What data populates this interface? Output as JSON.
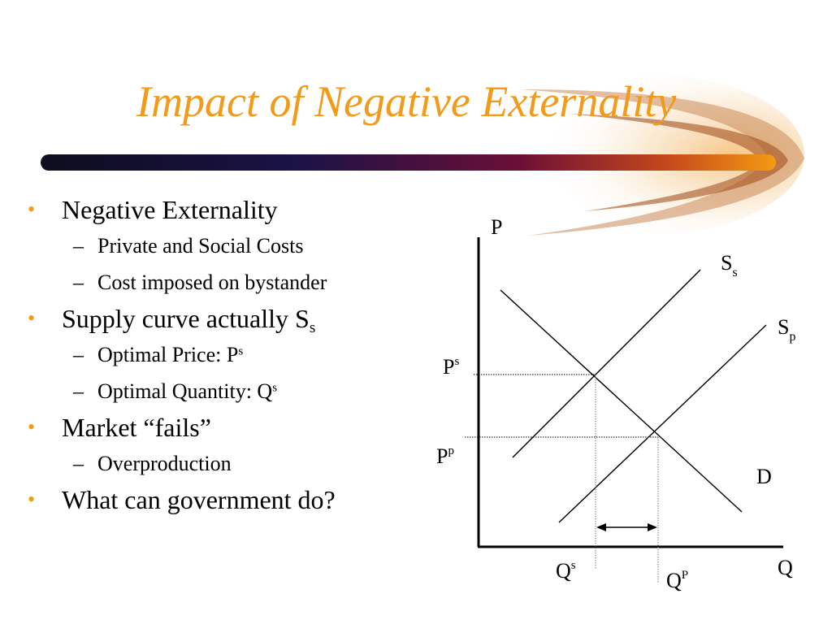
{
  "slide": {
    "title": "Impact of Negative Externality",
    "bullets": [
      {
        "text": "Negative Externality",
        "sub": [
          "Private and Social Costs",
          "Cost imposed on bystander"
        ]
      },
      {
        "text": "Supply curve actually S",
        "subscript": "s",
        "sub": [
          "Optimal Price: P",
          "Optimal Quantity: Q"
        ],
        "sub_sup": [
          "s",
          "s"
        ]
      },
      {
        "text": "Market “fails”",
        "sub": [
          "Overproduction"
        ]
      },
      {
        "text": "What can government do?",
        "sub": []
      }
    ],
    "bullet_symbol": "•",
    "dash_symbol": "–"
  },
  "chart_data": {
    "type": "diagram",
    "axes": {
      "y_label": "P",
      "x_label": "Q"
    },
    "curves": [
      {
        "name": "S",
        "subscript": "s"
      },
      {
        "name": "S",
        "subscript": "p"
      },
      {
        "name": "D",
        "subscript": ""
      }
    ],
    "y_ticks": [
      {
        "label": "P",
        "sup": "s"
      },
      {
        "label": "P",
        "sup": "p"
      }
    ],
    "x_ticks": [
      {
        "label": "Q",
        "sup": "s"
      },
      {
        "label": "Q",
        "sup": "P"
      }
    ],
    "annotations": [
      "double-headed arrow between Q^s and Q^P indicating overproduction"
    ]
  },
  "colors": {
    "accent": "#f29a1a",
    "bar_start": "#0d0d1e",
    "bar_mid": "#6b0f36",
    "bar_end": "#f49a12"
  }
}
